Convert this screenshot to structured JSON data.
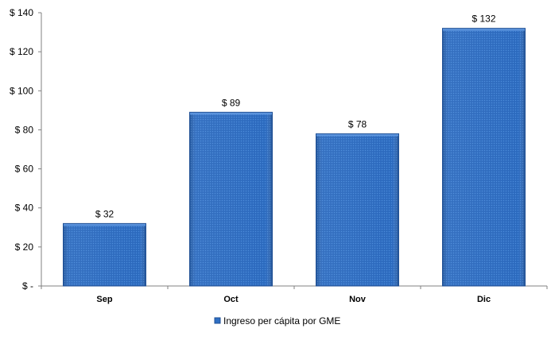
{
  "chart_data": {
    "type": "bar",
    "categories": [
      "Sep",
      "Oct",
      "Nov",
      "Dic"
    ],
    "series": [
      {
        "name": "Ingreso per cápita por GME",
        "values": [
          32,
          89,
          78,
          132
        ],
        "color": "#2f6fc4"
      }
    ],
    "data_labels": [
      "$ 32",
      "$ 89",
      "$ 78",
      "$ 132"
    ],
    "ylim": [
      0,
      140
    ],
    "yticks": [
      0,
      20,
      40,
      60,
      80,
      100,
      120,
      140
    ],
    "ytick_labels": [
      "$ -",
      "$ 20",
      "$ 40",
      "$ 60",
      "$ 80",
      "$ 100",
      "$ 120",
      "$ 140"
    ],
    "grid": false,
    "legend_position": "bottom"
  },
  "colors": {
    "bar_fill": "#2f6fc4",
    "bar_dark": "#1f4f94",
    "bar_top": "#5b93dc",
    "axis": "#808080"
  }
}
